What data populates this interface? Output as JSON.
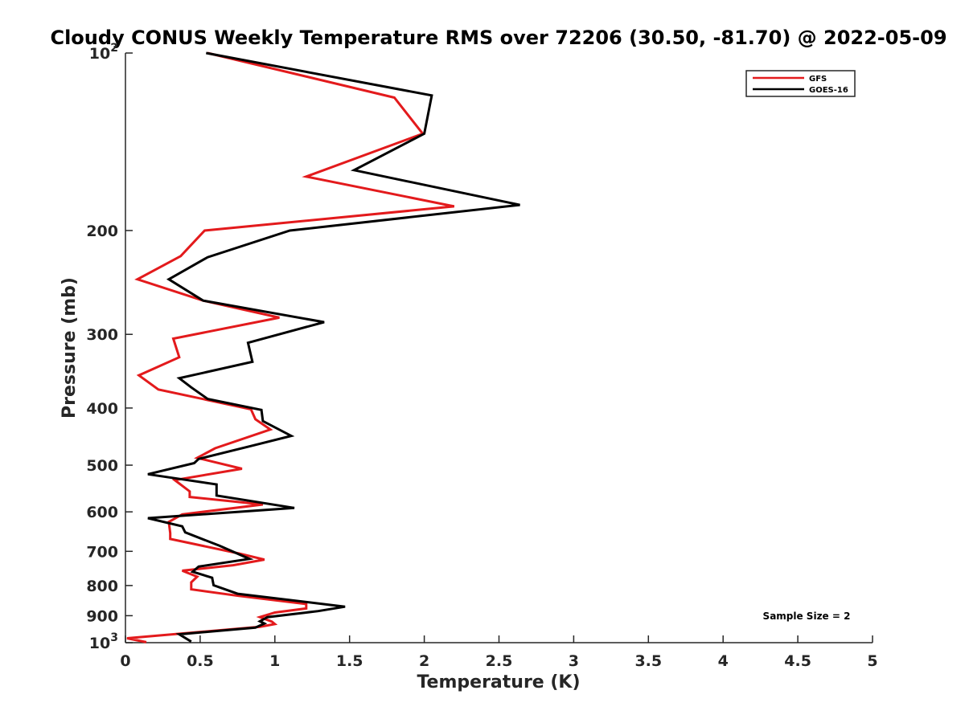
{
  "chart_data": {
    "type": "line",
    "title": "Cloudy CONUS Weekly Temperature RMS over 72206 (30.50, -81.70) @ 2022-05-09",
    "xlabel": "Temperature (K)",
    "ylabel": "Pressure (mb)",
    "xlim": [
      0,
      5
    ],
    "ylim": [
      100,
      1000
    ],
    "y_scale": "log",
    "y_reversed": true,
    "grid": false,
    "legend_position": "top-right",
    "x_ticks": [
      0,
      0.5,
      1,
      1.5,
      2,
      2.5,
      3,
      3.5,
      4,
      4.5,
      5
    ],
    "x_tick_labels": [
      "0",
      "0.5",
      "1",
      "1.5",
      "2",
      "2.5",
      "3",
      "3.5",
      "4",
      "4.5",
      "5"
    ],
    "y_ticks": [
      100,
      200,
      300,
      400,
      500,
      600,
      700,
      800,
      900,
      1000
    ],
    "y_tick_labels": [
      {
        "base": "10",
        "exp": "2"
      },
      {
        "base": "200",
        "exp": ""
      },
      {
        "base": "300",
        "exp": ""
      },
      {
        "base": "400",
        "exp": ""
      },
      {
        "base": "500",
        "exp": ""
      },
      {
        "base": "600",
        "exp": ""
      },
      {
        "base": "700",
        "exp": ""
      },
      {
        "base": "800",
        "exp": ""
      },
      {
        "base": "900",
        "exp": ""
      },
      {
        "base": "10",
        "exp": "3"
      }
    ],
    "annotation": "Sample Size = 2",
    "series": [
      {
        "name": "GFS",
        "color": "#e31a1c",
        "points": [
          [
            0.55,
            100
          ],
          [
            1.8,
            119
          ],
          [
            1.99,
            137
          ],
          [
            1.21,
            162
          ],
          [
            2.2,
            182
          ],
          [
            0.53,
            200
          ],
          [
            0.37,
            221
          ],
          [
            0.08,
            242
          ],
          [
            0.52,
            263
          ],
          [
            1.03,
            281
          ],
          [
            0.32,
            305
          ],
          [
            0.36,
            328
          ],
          [
            0.09,
            352
          ],
          [
            0.22,
            372
          ],
          [
            0.84,
            402
          ],
          [
            0.87,
            418
          ],
          [
            0.97,
            435
          ],
          [
            0.6,
            468
          ],
          [
            0.48,
            486
          ],
          [
            0.78,
            507
          ],
          [
            0.33,
            530
          ],
          [
            0.43,
            554
          ],
          [
            0.43,
            566
          ],
          [
            0.92,
            583
          ],
          [
            0.38,
            606
          ],
          [
            0.29,
            624
          ],
          [
            0.3,
            652
          ],
          [
            0.3,
            667
          ],
          [
            0.76,
            706
          ],
          [
            0.93,
            723
          ],
          [
            0.72,
            739
          ],
          [
            0.38,
            755
          ],
          [
            0.48,
            773
          ],
          [
            0.44,
            790
          ],
          [
            0.44,
            812
          ],
          [
            0.76,
            833
          ],
          [
            1.21,
            860
          ],
          [
            1.21,
            875
          ],
          [
            1.0,
            889
          ],
          [
            0.9,
            905
          ],
          [
            0.98,
            921
          ],
          [
            1.0,
            930
          ],
          [
            0.9,
            940
          ],
          [
            0.01,
            983
          ],
          [
            0.14,
            998
          ]
        ]
      },
      {
        "name": "GOES-16",
        "color": "#000000",
        "points": [
          [
            0.54,
            100
          ],
          [
            2.05,
            118
          ],
          [
            2.0,
            137
          ],
          [
            1.53,
            158
          ],
          [
            2.64,
            181
          ],
          [
            1.1,
            200
          ],
          [
            0.55,
            222
          ],
          [
            0.29,
            242
          ],
          [
            0.52,
            263
          ],
          [
            1.33,
            286
          ],
          [
            0.82,
            310
          ],
          [
            0.85,
            334
          ],
          [
            0.36,
            356
          ],
          [
            0.44,
            369
          ],
          [
            0.55,
            386
          ],
          [
            0.91,
            403
          ],
          [
            0.92,
            421
          ],
          [
            1.11,
            446
          ],
          [
            0.84,
            464
          ],
          [
            0.49,
            488
          ],
          [
            0.46,
            496
          ],
          [
            0.15,
            518
          ],
          [
            0.61,
            539
          ],
          [
            0.61,
            563
          ],
          [
            1.13,
            591
          ],
          [
            0.15,
            615
          ],
          [
            0.38,
            635
          ],
          [
            0.4,
            650
          ],
          [
            0.63,
            685
          ],
          [
            0.83,
            721
          ],
          [
            0.49,
            743
          ],
          [
            0.45,
            758
          ],
          [
            0.58,
            776
          ],
          [
            0.59,
            799
          ],
          [
            0.75,
            826
          ],
          [
            1.47,
            869
          ],
          [
            1.29,
            884
          ],
          [
            0.95,
            905
          ],
          [
            0.9,
            920
          ],
          [
            0.93,
            928
          ],
          [
            0.87,
            943
          ],
          [
            0.36,
            968
          ],
          [
            0.44,
            996
          ]
        ]
      }
    ]
  }
}
